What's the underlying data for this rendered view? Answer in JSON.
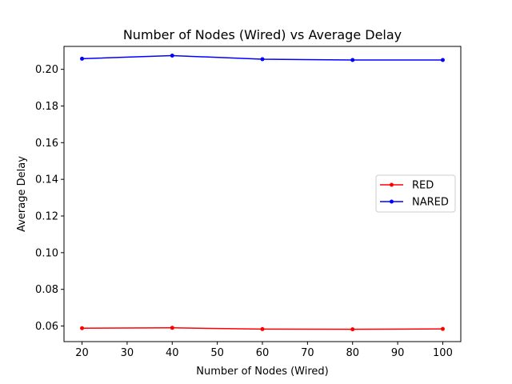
{
  "chart_data": {
    "type": "line",
    "title": "Number of Nodes (Wired)  vs Average Delay",
    "xlabel": "Number of Nodes (Wired)",
    "ylabel": "Average Delay",
    "x": [
      20,
      40,
      60,
      80,
      100
    ],
    "xlim": [
      16,
      104
    ],
    "ylim": [
      0.0515,
      0.2125
    ],
    "xticks": [
      20,
      30,
      40,
      50,
      60,
      70,
      80,
      90,
      100
    ],
    "yticks": [
      0.06,
      0.08,
      0.1,
      0.12,
      0.14,
      0.16,
      0.18,
      0.2
    ],
    "ytick_labels": [
      "0.06",
      "0.08",
      "0.10",
      "0.12",
      "0.14",
      "0.16",
      "0.18",
      "0.20"
    ],
    "grid": false,
    "legend_position": "center-right",
    "series": [
      {
        "name": "RED",
        "color": "#ff0000",
        "marker": "dot",
        "values": [
          0.0588,
          0.059,
          0.0583,
          0.0582,
          0.0584
        ]
      },
      {
        "name": "NARED",
        "color": "#0000ff",
        "marker": "dot",
        "values": [
          0.2058,
          0.2075,
          0.2055,
          0.2051,
          0.2051
        ]
      }
    ]
  }
}
